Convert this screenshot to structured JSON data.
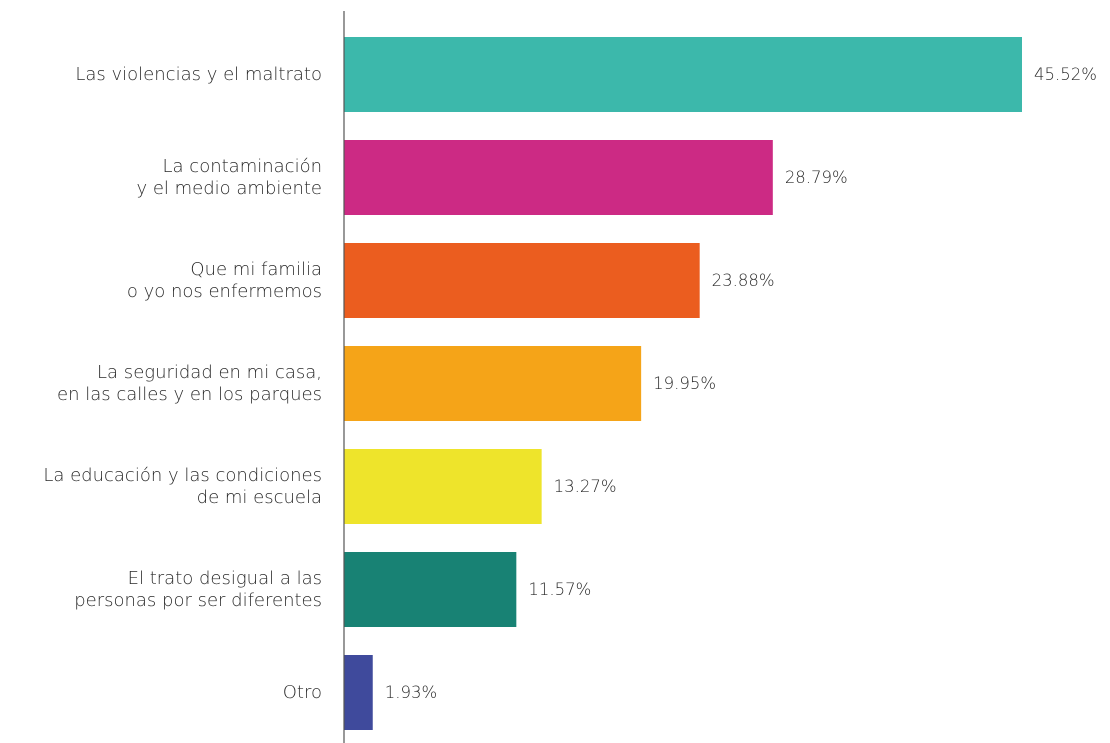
{
  "chart_data": {
    "type": "bar",
    "orientation": "horizontal",
    "title": "",
    "xlabel": "",
    "ylabel": "",
    "categories": [
      [
        "Las violencias y el maltrato"
      ],
      [
        "La contaminación",
        "y el medio ambiente"
      ],
      [
        "Que mi familia",
        "o yo nos enfermemos"
      ],
      [
        "La seguridad en mi casa,",
        "en las calles y en los parques"
      ],
      [
        "La educación y las condiciones",
        "de mi escuela"
      ],
      [
        "El trato desigual a las",
        "personas por ser diferentes"
      ],
      [
        "Otro"
      ]
    ],
    "values": [
      45.52,
      28.79,
      23.88,
      19.95,
      13.27,
      11.57,
      1.93
    ],
    "value_labels": [
      "45.52%",
      "28.79%",
      "23.88%",
      "19.95%",
      "13.27%",
      "11.57%",
      "1.93%"
    ],
    "colors": [
      "#3cb8ab",
      "#cc2a84",
      "#eb5d1f",
      "#f5a418",
      "#eee42b",
      "#188274",
      "#3f4a9c"
    ],
    "axis_color": "#555555",
    "xlim": [
      0,
      45.52
    ],
    "grid": false,
    "legend": "none"
  }
}
